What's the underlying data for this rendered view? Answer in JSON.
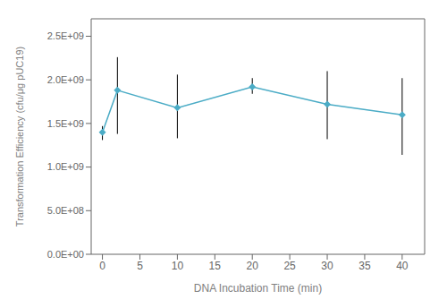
{
  "chart_data": {
    "type": "line",
    "xlabel": "DNA Incubation Time (min)",
    "ylabel": "Transformation Efficiency (cfu/μg pUC19)",
    "x": [
      0,
      2,
      10,
      20,
      30,
      40
    ],
    "values": [
      1400000000.0,
      1880000000.0,
      1680000000.0,
      1920000000.0,
      1720000000.0,
      1600000000.0
    ],
    "error_upper": [
      70000000.0,
      380000000.0,
      380000000.0,
      100000000.0,
      380000000.0,
      420000000.0
    ],
    "error_lower": [
      90000000.0,
      500000000.0,
      350000000.0,
      80000000.0,
      400000000.0,
      460000000.0
    ],
    "color": "#4BACC6",
    "marker": "diamond",
    "xlim": [
      -1.5,
      43
    ],
    "xticks": [
      0,
      5,
      10,
      15,
      20,
      25,
      30,
      35,
      40
    ],
    "ylim": [
      0,
      2700000000.0
    ],
    "yticks": [
      {
        "value": 0,
        "label": "0.0E+00"
      },
      {
        "value": 500000000.0,
        "label": "5.0E+08"
      },
      {
        "value": 1000000000.0,
        "label": "1.0E+09"
      },
      {
        "value": 1500000000.0,
        "label": "1.5E+09"
      },
      {
        "value": 2000000000.0,
        "label": "2.0E+09"
      },
      {
        "value": 2500000000.0,
        "label": "2.5E+09"
      }
    ],
    "grid": false
  }
}
